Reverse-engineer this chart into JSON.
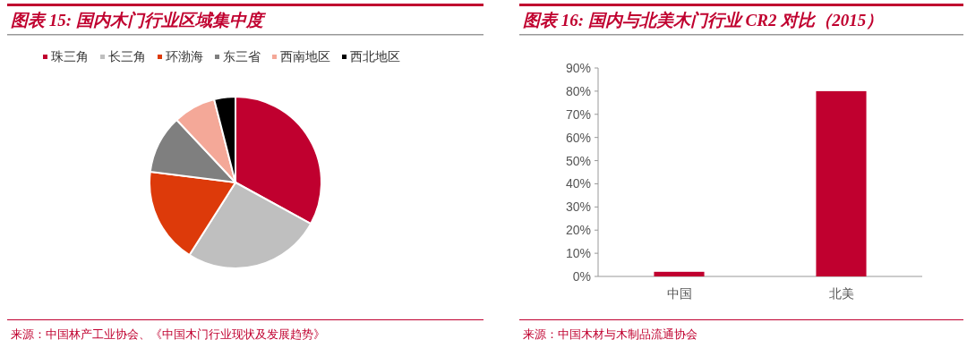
{
  "chart_data": [
    {
      "type": "pie",
      "title": "图表 15: 国内木门行业区域集中度",
      "categories": [
        "珠三角",
        "长三角",
        "环渤海",
        "东三省",
        "西南地区",
        "西北地区"
      ],
      "values": [
        33,
        26,
        18,
        11,
        8,
        4
      ],
      "colors": [
        "#c0002f",
        "#bfbfbf",
        "#dd3a0a",
        "#7f7f7f",
        "#f4a898",
        "#000000"
      ],
      "legend": "top",
      "annotations": [
        "来源：中国林产工业协会、《中国木门行业现状及发展趋势》"
      ]
    },
    {
      "type": "bar",
      "title": "图表 16: 国内与北美木门行业 CR2 对比（2015）",
      "categories": [
        "中国",
        "北美"
      ],
      "values": [
        2,
        80
      ],
      "color": "#c0002f",
      "ylim": [
        0,
        90
      ],
      "yticks": [
        {
          "value": 0,
          "label": "0%"
        },
        {
          "value": 10,
          "label": "10%"
        },
        {
          "value": 20,
          "label": "20%"
        },
        {
          "value": 30,
          "label": "30%"
        },
        {
          "value": 40,
          "label": "40%"
        },
        {
          "value": 50,
          "label": "50%"
        },
        {
          "value": 60,
          "label": "60%"
        },
        {
          "value": 70,
          "label": "70%"
        },
        {
          "value": 80,
          "label": "80%"
        },
        {
          "value": 90,
          "label": "90%"
        }
      ],
      "grid": false,
      "annotations": [
        "来源：中国木材与木制品流通协会"
      ]
    }
  ]
}
